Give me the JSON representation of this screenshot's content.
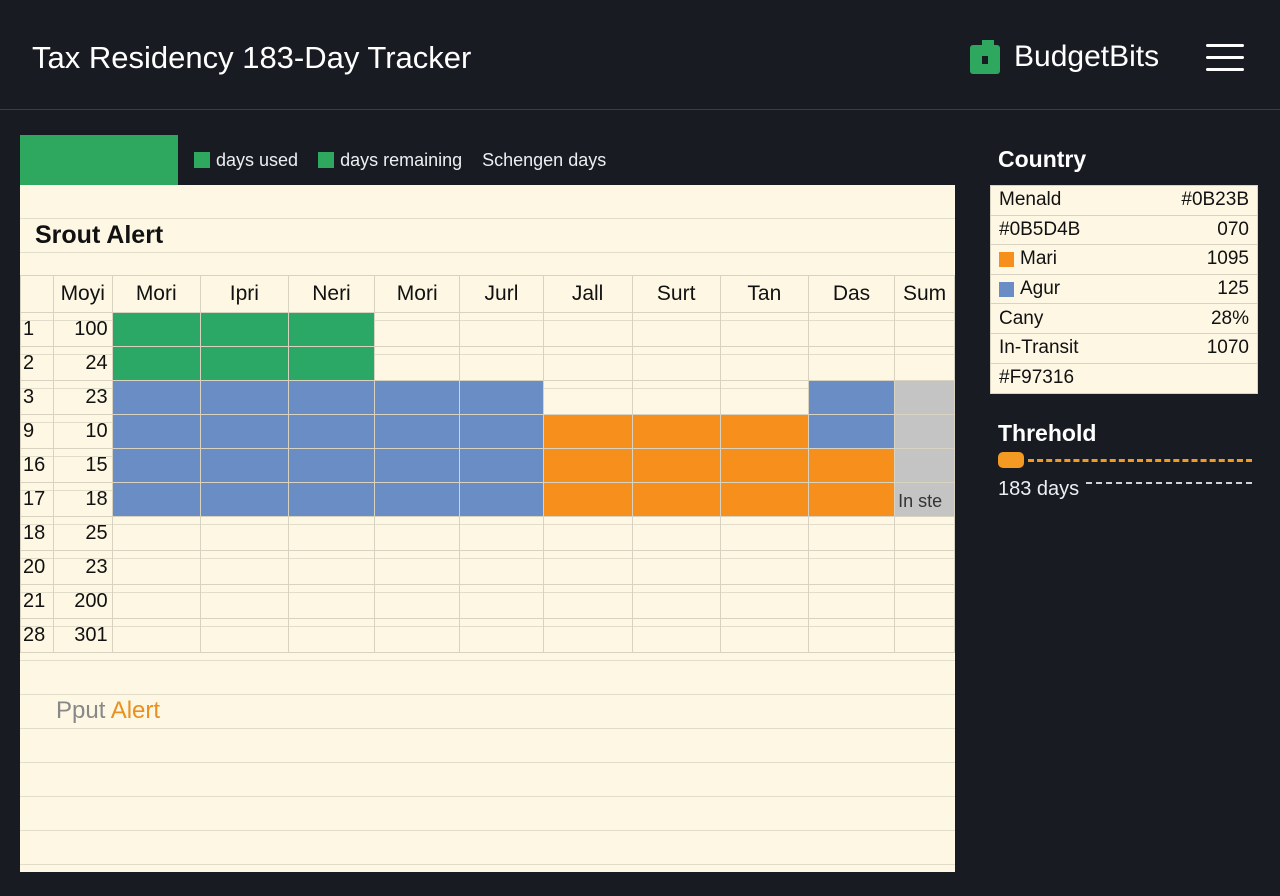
{
  "header": {
    "title": "Tax Residency 183-Day Tracker",
    "brand": "BudgetBits",
    "brand_color": "#2FA85F",
    "menu_icon": "hamburger-menu-icon"
  },
  "legend": {
    "tab_color": "#2FA85F",
    "items": [
      "days used",
      "days remaining",
      "Schengen days"
    ]
  },
  "sheet": {
    "alert_title": "Srout Alert",
    "columns": [
      "",
      "Moyi",
      "Mori",
      "Ipri",
      "Neri",
      "Mori",
      "Jurl",
      "Jall",
      "Surt",
      "Tan",
      "Das",
      "Sum"
    ],
    "rows": [
      {
        "idx": "1",
        "val": "100",
        "cells": [
          "g",
          "g",
          "g",
          "",
          "",
          "",
          "",
          "",
          "",
          ""
        ]
      },
      {
        "idx": "2",
        "val": "24",
        "cells": [
          "g",
          "g",
          "g",
          "",
          "",
          "",
          "",
          "",
          "",
          ""
        ]
      },
      {
        "idx": "3",
        "val": "23",
        "cells": [
          "b",
          "b",
          "b",
          "b",
          "b",
          "",
          "",
          "",
          "b",
          "x"
        ]
      },
      {
        "idx": "9",
        "val": "10",
        "cells": [
          "b",
          "b",
          "b",
          "b",
          "b",
          "o",
          "o",
          "o",
          "b",
          "x"
        ]
      },
      {
        "idx": "16",
        "val": "15",
        "cells": [
          "b",
          "b",
          "b",
          "b",
          "b",
          "o",
          "o",
          "o",
          "o",
          "x"
        ]
      },
      {
        "idx": "17",
        "val": "18",
        "cells": [
          "b",
          "b",
          "b",
          "b",
          "b",
          "o",
          "o",
          "o",
          "o",
          "x"
        ]
      },
      {
        "idx": "18",
        "val": "25",
        "cells": [
          "",
          "",
          "",
          "",
          "",
          "",
          "",
          "",
          "",
          ""
        ]
      },
      {
        "idx": "20",
        "val": "23",
        "cells": [
          "",
          "",
          "",
          "",
          "",
          "",
          "",
          "",
          "",
          ""
        ]
      },
      {
        "idx": "21",
        "val": "200",
        "cells": [
          "",
          "",
          "",
          "",
          "",
          "",
          "",
          "",
          "",
          ""
        ]
      },
      {
        "idx": "28",
        "val": "301",
        "cells": [
          "",
          "",
          "",
          "",
          "",
          "",
          "",
          "",
          "",
          ""
        ]
      }
    ],
    "gray_cell_text": "In ste",
    "bottom_alert_prefix": "Pput",
    "bottom_alert_accent": "Alert",
    "colors": {
      "green": "#2CA866",
      "blue": "#6A8DC6",
      "orange": "#F78F1C",
      "gray": "#C4C4C4"
    }
  },
  "country": {
    "heading": "Country",
    "rows": [
      {
        "name": "Menald",
        "value": "#0B23B",
        "swatch": ""
      },
      {
        "name": "#0B5D4B",
        "value": "070",
        "swatch": ""
      },
      {
        "name": "Mari",
        "value": "1095",
        "swatch": "#F78F1C"
      },
      {
        "name": "Agur",
        "value": "125",
        "swatch": "#6A8DC6"
      },
      {
        "name": "Cany",
        "value": "28%",
        "swatch": ""
      },
      {
        "name": "In-Transit",
        "value": "1070",
        "swatch": ""
      },
      {
        "name": "#F97316",
        "value": "",
        "swatch": ""
      }
    ]
  },
  "threshold": {
    "heading": "Threhold",
    "label": "183 days",
    "color": "#F39A22"
  }
}
